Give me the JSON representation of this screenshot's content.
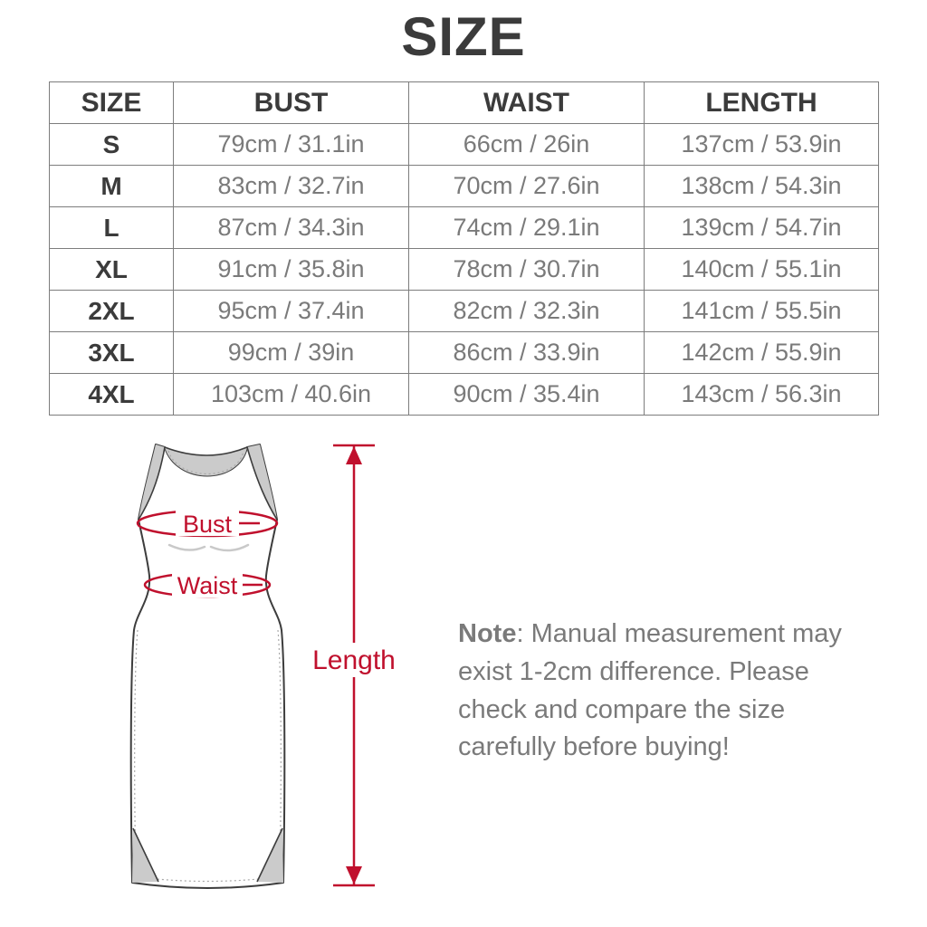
{
  "page_title": "SIZE",
  "chart_data": {
    "type": "table",
    "title": "SIZE",
    "columns": [
      "SIZE",
      "BUST",
      "WAIST",
      "LENGTH"
    ],
    "rows": [
      [
        "S",
        "79cm / 31.1in",
        "66cm / 26in",
        "137cm / 53.9in"
      ],
      [
        "M",
        "83cm / 32.7in",
        "70cm / 27.6in",
        "138cm / 54.3in"
      ],
      [
        "L",
        "87cm / 34.3in",
        "74cm / 29.1in",
        "139cm / 54.7in"
      ],
      [
        "XL",
        "91cm / 35.8in",
        "78cm / 30.7in",
        "140cm / 55.1in"
      ],
      [
        "2XL",
        "95cm / 37.4in",
        "82cm / 32.3in",
        "141cm / 55.5in"
      ],
      [
        "3XL",
        "99cm / 39in",
        "86cm / 33.9in",
        "142cm / 55.9in"
      ],
      [
        "4XL",
        "103cm / 40.6in",
        "90cm / 35.4in",
        "143cm / 56.3in"
      ]
    ]
  },
  "diagram": {
    "bust_label": "Bust",
    "waist_label": "Waist",
    "length_label": "Length"
  },
  "note": {
    "prefix": "Note",
    "body": ": Manual measurement may exist 1-2cm difference. Please check and compare the size carefully before buying!"
  },
  "colors": {
    "accent_red": "#c0102d",
    "table_border": "#7d7d7d",
    "heading_text": "#3b3b3b",
    "cell_text": "#7a7a7a",
    "dress_outline": "#3d3d3d",
    "dress_shadow": "#cbcbcb"
  }
}
